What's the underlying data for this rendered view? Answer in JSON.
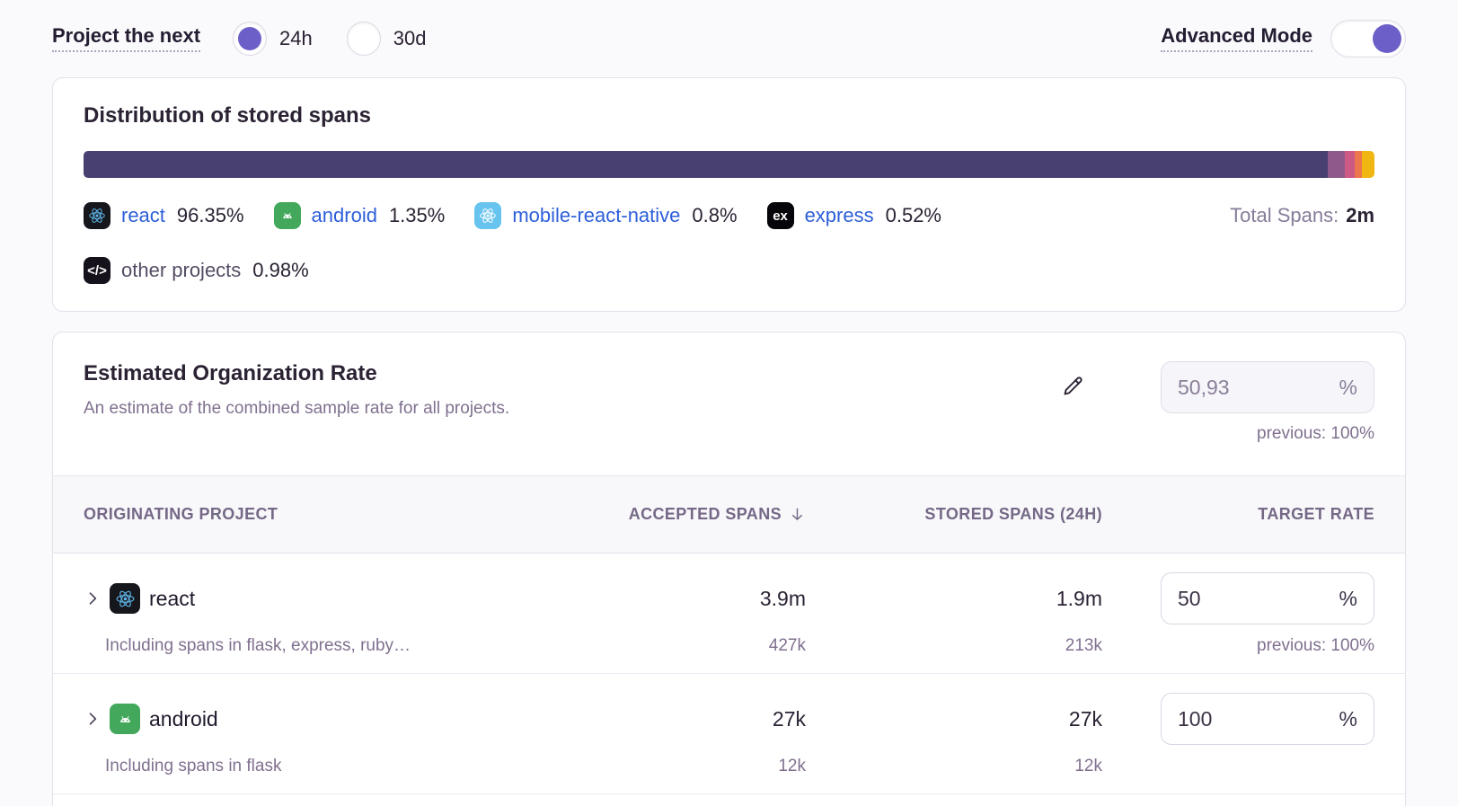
{
  "controls": {
    "project_next_label": "Project the next",
    "options": [
      {
        "label": "24h",
        "selected": true
      },
      {
        "label": "30d",
        "selected": false
      }
    ],
    "advanced_mode_label": "Advanced Mode",
    "advanced_mode_on": true
  },
  "distribution": {
    "title": "Distribution of stored spans",
    "total_label": "Total Spans:",
    "total_value": "2m",
    "segments": [
      {
        "name": "react",
        "percent": 96.35,
        "color": "#474071"
      },
      {
        "name": "android",
        "percent": 1.35,
        "color": "#8D5A8B"
      },
      {
        "name": "mobile-react-native",
        "percent": 0.8,
        "color": "#CC5A84"
      },
      {
        "name": "express",
        "percent": 0.52,
        "color": "#ED764D"
      },
      {
        "name": "other projects",
        "percent": 0.98,
        "color": "#F0B712"
      }
    ],
    "legend": [
      {
        "name": "react",
        "pct": "96.35%"
      },
      {
        "name": "android",
        "pct": "1.35%"
      },
      {
        "name": "mobile-react-native",
        "pct": "0.8%"
      },
      {
        "name": "express",
        "pct": "0.52%"
      },
      {
        "name": "other projects",
        "pct": "0.98%"
      }
    ]
  },
  "org_rate": {
    "title": "Estimated Organization Rate",
    "description": "An estimate of the combined sample rate for all projects.",
    "value": "50,93",
    "unit": "%",
    "previous": "previous: 100%"
  },
  "table": {
    "headers": {
      "project": "ORIGINATING PROJECT",
      "accepted": "ACCEPTED SPANS",
      "stored": "STORED SPANS (24H)",
      "rate": "TARGET RATE"
    },
    "rows": [
      {
        "name": "react",
        "accepted": "3.9m",
        "stored": "1.9m",
        "rate": "50",
        "unit": "%",
        "sub_label": "Including spans in flask, express, ruby…",
        "sub_accepted": "427k",
        "sub_stored": "213k",
        "sub_previous": "previous: 100%"
      },
      {
        "name": "android",
        "accepted": "27k",
        "stored": "27k",
        "rate": "100",
        "unit": "%",
        "sub_label": "Including spans in flask",
        "sub_accepted": "12k",
        "sub_stored": "12k",
        "sub_previous": ""
      }
    ]
  }
}
